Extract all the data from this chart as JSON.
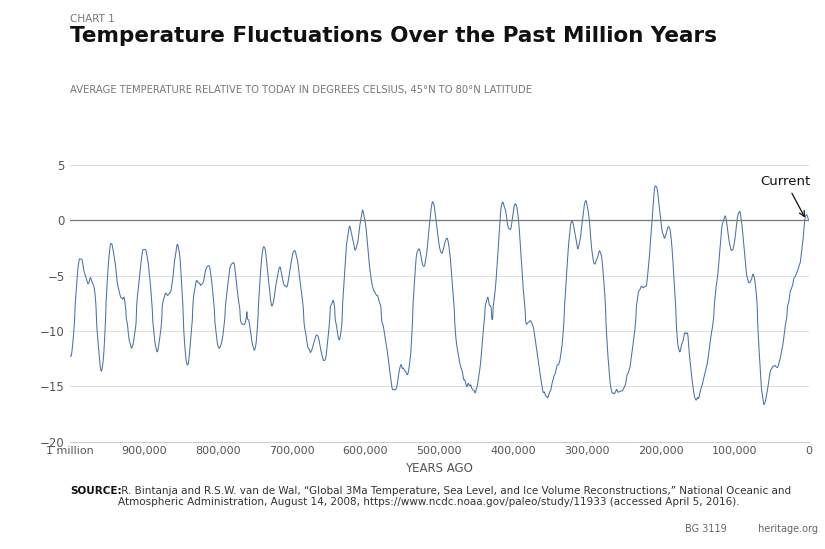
{
  "chart_label": "CHART 1",
  "title": "Temperature Fluctuations Over the Past Million Years",
  "subtitle": "AVERAGE TEMPERATURE RELATIVE TO TODAY IN DEGREES CELSIUS, 45°N TO 80°N LATITUDE",
  "xlabel": "YEARS AGO",
  "xlim": [
    1000000,
    0
  ],
  "ylim": [
    -20,
    5
  ],
  "yticks": [
    5,
    0,
    -5,
    -10,
    -15,
    -20
  ],
  "xticks": [
    1000000,
    900000,
    800000,
    700000,
    600000,
    500000,
    400000,
    300000,
    200000,
    100000,
    0
  ],
  "xticklabels": [
    "1 million",
    "900,000",
    "800,000",
    "700,000",
    "600,000",
    "500,000",
    "400,000",
    "300,000",
    "200,000",
    "100,000",
    "0"
  ],
  "line_color": "#4a72a8",
  "zero_line_color": "#777777",
  "annotation_text": "Current",
  "source_bold": "SOURCE:",
  "source_body": " R. Bintanja and R.S.W. van de Wal, “Global 3Ma Temperature, Sea Level, and Ice Volume Reconstructions,” National Oceanic and Atmospheric Administration, August 14, 2008, https://www.ncdc.noaa.gov/paleo/study/11933 (accessed April 5, 2016).",
  "bg_color": "#ffffff",
  "title_color": "#111111",
  "subtitle_color": "#777777",
  "chart_label_color": "#777777",
  "bg_label": "BG 3119",
  "watermark": " heritage.org"
}
